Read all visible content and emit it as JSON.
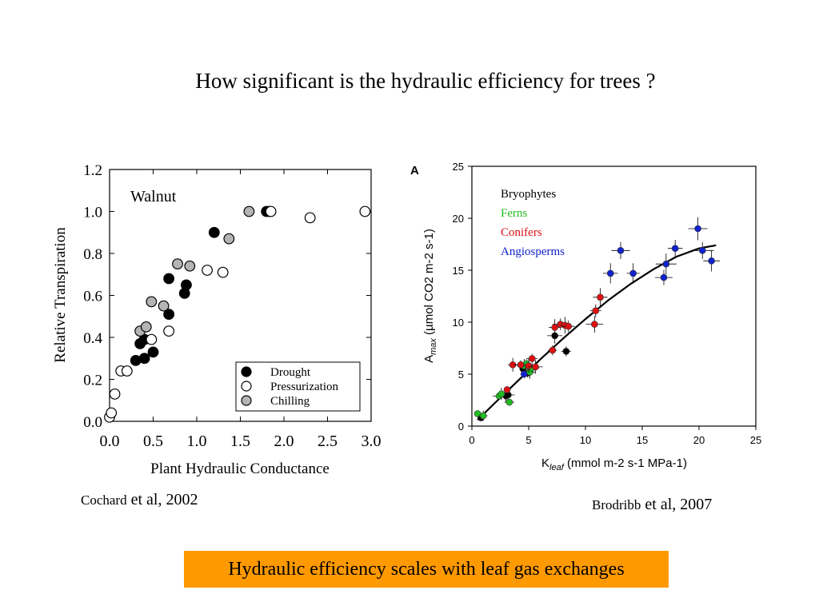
{
  "slide": {
    "title": "How significant is the hydraulic efficiency for trees ?",
    "left_citation": {
      "authors": "Cochard",
      "rest": "et al, 2002"
    },
    "right_citation": {
      "authors": "Brodribb",
      "rest": "et al, 2007"
    },
    "banner": "Hydraulic efficiency scales with leaf gas exchanges",
    "banner_color": "#ff9900"
  },
  "chart_data": [
    {
      "type": "scatter",
      "title": "Walnut",
      "xlabel": "Plant Hydraulic Conductance",
      "ylabel": "Relative Transpiration",
      "xlim": [
        0,
        3.0
      ],
      "ylim": [
        0,
        1.2
      ],
      "xticks": [
        "0.0",
        "0.5",
        "1.0",
        "1.5",
        "2.0",
        "2.5",
        "3.0"
      ],
      "yticks": [
        "0.0",
        "0.2",
        "0.4",
        "0.6",
        "0.8",
        "1.0",
        "1.2"
      ],
      "grid": false,
      "legend_position": "bottom-right",
      "series": [
        {
          "name": "Drought",
          "marker": "filled-black",
          "points": [
            [
              0.3,
              0.29
            ],
            [
              0.35,
              0.37
            ],
            [
              0.4,
              0.3
            ],
            [
              0.4,
              0.39
            ],
            [
              0.5,
              0.33
            ],
            [
              0.68,
              0.51
            ],
            [
              0.68,
              0.68
            ],
            [
              0.86,
              0.61
            ],
            [
              0.88,
              0.65
            ],
            [
              1.2,
              0.9
            ],
            [
              1.8,
              1.0
            ],
            [
              1.83,
              1.0
            ]
          ]
        },
        {
          "name": "Pressurization",
          "marker": "open",
          "points": [
            [
              0.0,
              0.02
            ],
            [
              0.02,
              0.04
            ],
            [
              0.06,
              0.13
            ],
            [
              0.13,
              0.24
            ],
            [
              0.2,
              0.24
            ],
            [
              0.48,
              0.39
            ],
            [
              0.68,
              0.43
            ],
            [
              1.12,
              0.72
            ],
            [
              1.3,
              0.71
            ],
            [
              1.85,
              1.0
            ],
            [
              2.3,
              0.97
            ],
            [
              2.93,
              1.0
            ]
          ]
        },
        {
          "name": "Chilling",
          "marker": "filled-gray",
          "points": [
            [
              0.35,
              0.43
            ],
            [
              0.42,
              0.45
            ],
            [
              0.48,
              0.57
            ],
            [
              0.62,
              0.55
            ],
            [
              0.78,
              0.75
            ],
            [
              0.92,
              0.74
            ],
            [
              1.37,
              0.87
            ],
            [
              1.6,
              1.0
            ]
          ]
        }
      ]
    },
    {
      "type": "scatter",
      "panel_label": "A",
      "xlabel": "K",
      "xlabel_sub": "leaf",
      "xlabel_units": "(mmol m-2 s-1 MPa-1)",
      "ylabel": "A",
      "ylabel_sub": "max",
      "ylabel_units": "(µmol CO2 m-2 s-1)",
      "xlim": [
        0,
        25
      ],
      "ylim": [
        0,
        25
      ],
      "xticks": [
        "0",
        "5",
        "10",
        "15",
        "20",
        "25"
      ],
      "yticks": [
        "0",
        "5",
        "10",
        "15",
        "20",
        "25"
      ],
      "grid": false,
      "legend_position": "top-center",
      "fit_line": [
        [
          0.5,
          0.6
        ],
        [
          2,
          2.2
        ],
        [
          4,
          4.3
        ],
        [
          6,
          6.4
        ],
        [
          8,
          8.4
        ],
        [
          10,
          10.3
        ],
        [
          12,
          12.1
        ],
        [
          14,
          13.7
        ],
        [
          16,
          15.1
        ],
        [
          18,
          16.3
        ],
        [
          20,
          17.1
        ],
        [
          21.5,
          17.4
        ]
      ],
      "series": [
        {
          "name": "Bryophytes",
          "color": "#000000",
          "points": [
            [
              0.8,
              0.8
            ],
            [
              3.0,
              2.9
            ],
            [
              3.2,
              3.0
            ],
            [
              4.5,
              5.5
            ],
            [
              4.9,
              5.1
            ],
            [
              7.3,
              8.7
            ],
            [
              8.3,
              7.2
            ]
          ]
        },
        {
          "name": "Ferns",
          "color": "#22bb22",
          "points": [
            [
              0.5,
              1.2
            ],
            [
              1.0,
              1.0
            ],
            [
              2.4,
              2.9
            ],
            [
              2.6,
              3.1
            ],
            [
              3.3,
              2.3
            ],
            [
              4.6,
              5.8
            ],
            [
              4.8,
              6.0
            ],
            [
              5.1,
              5.2
            ],
            [
              5.3,
              5.6
            ]
          ]
        },
        {
          "name": "Conifers",
          "color": "#dd1111",
          "points": [
            [
              3.1,
              3.5
            ],
            [
              3.6,
              5.9
            ],
            [
              4.3,
              5.9
            ],
            [
              5.0,
              5.8
            ],
            [
              5.3,
              6.5
            ],
            [
              5.6,
              5.7
            ],
            [
              7.1,
              7.3
            ],
            [
              7.3,
              9.5
            ],
            [
              7.8,
              9.8
            ],
            [
              8.2,
              9.7
            ],
            [
              8.5,
              9.6
            ],
            [
              10.8,
              9.8
            ],
            [
              10.9,
              11.1
            ],
            [
              11.3,
              12.4
            ]
          ]
        },
        {
          "name": "Angiosperms",
          "color": "#1122cc",
          "points": [
            [
              4.6,
              5.0
            ],
            [
              12.2,
              14.7
            ],
            [
              13.1,
              16.9
            ],
            [
              14.2,
              14.7
            ],
            [
              16.9,
              14.3
            ],
            [
              17.1,
              15.6
            ],
            [
              17.9,
              17.1
            ],
            [
              19.9,
              19.0
            ],
            [
              20.3,
              16.9
            ],
            [
              21.1,
              15.9
            ]
          ]
        }
      ]
    }
  ]
}
